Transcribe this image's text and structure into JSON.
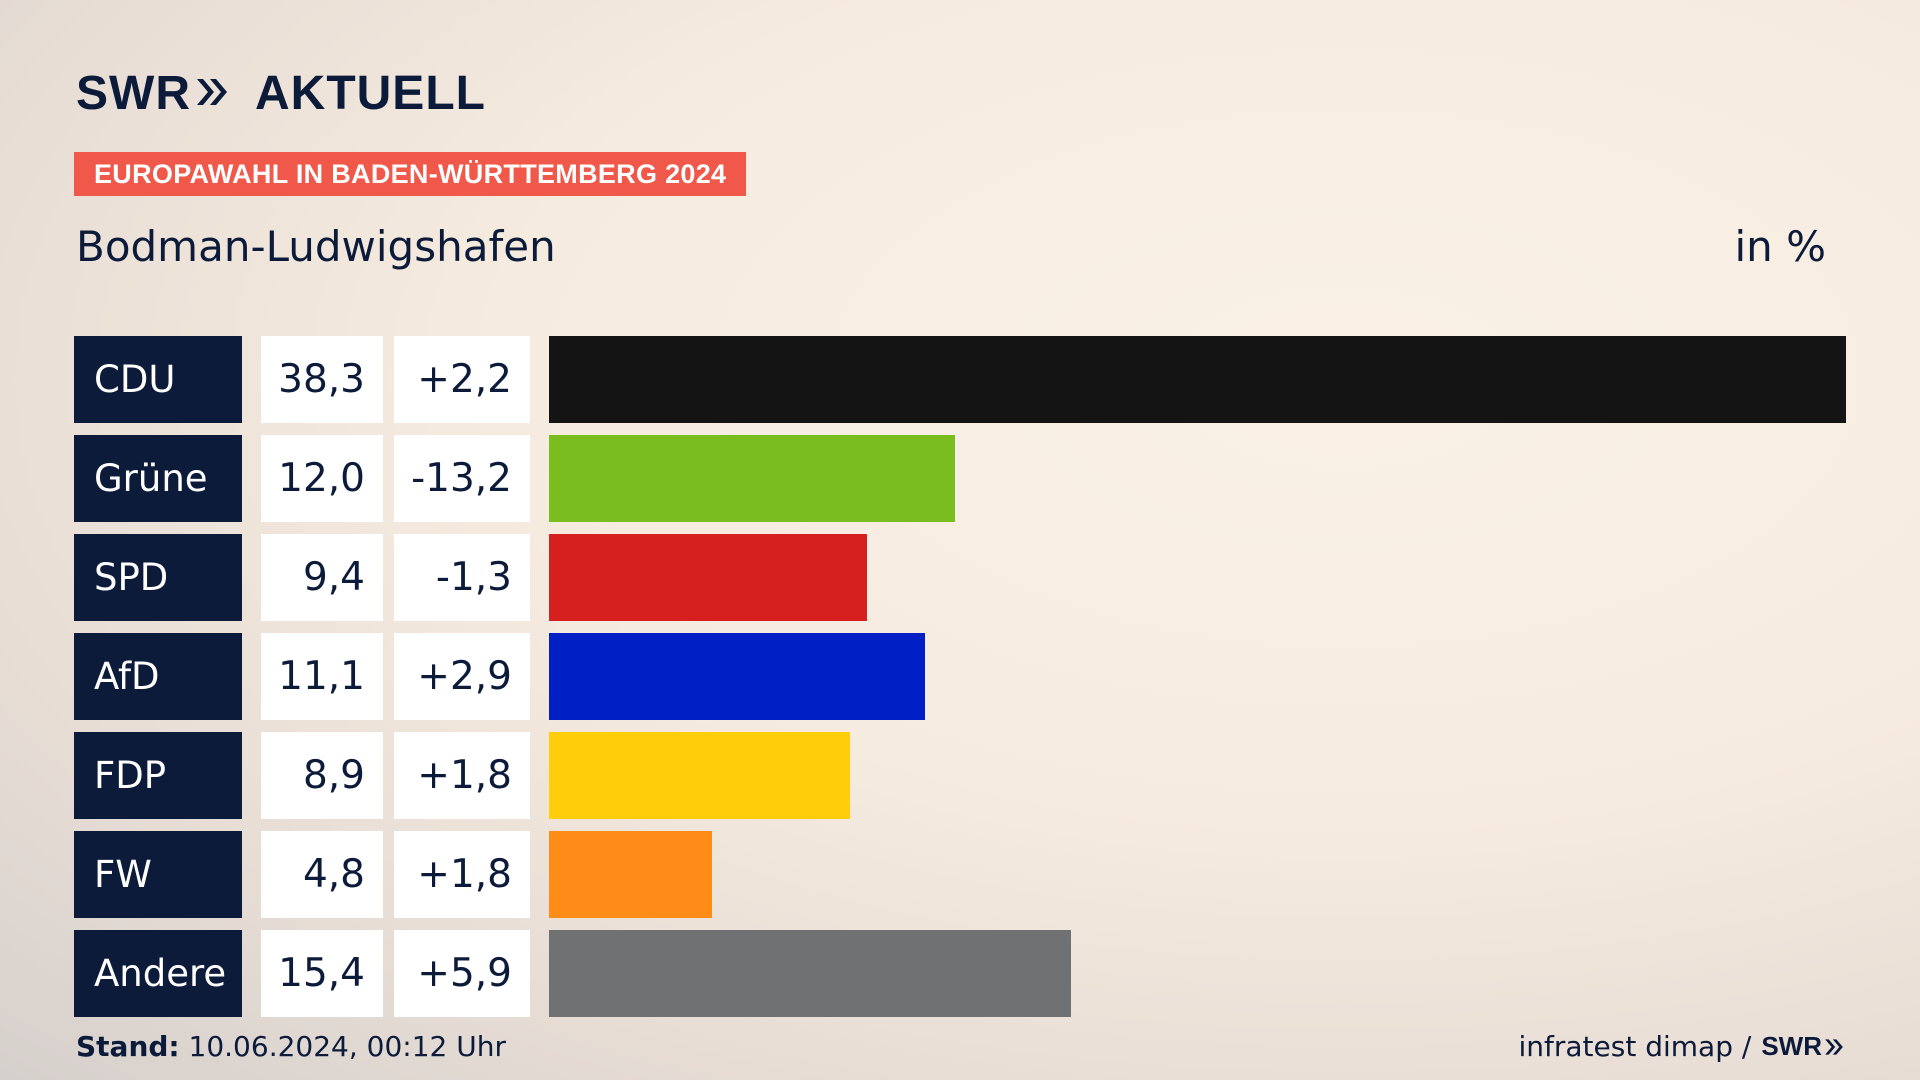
{
  "brand": {
    "swr": "SWR",
    "aktuell": "AKTUELL"
  },
  "banner": "EUROPAWAHL IN BADEN-WÜRTTEMBERG 2024",
  "place": "Bodman-Ludwigshafen",
  "unit": "in %",
  "footer": {
    "stand_label": "Stand:",
    "stand_value": "10.06.2024, 00:12 Uhr",
    "source": "infratest dimap /",
    "source_brand": "SWR"
  },
  "chart_data": {
    "type": "bar",
    "categories": [
      "CDU",
      "Grüne",
      "SPD",
      "AfD",
      "FDP",
      "FW",
      "Andere"
    ],
    "values": [
      38.3,
      12.0,
      9.4,
      11.1,
      8.9,
      4.8,
      15.4
    ],
    "value_labels": [
      "38,3",
      "12,0",
      "9,4",
      "11,1",
      "8,9",
      "4,8",
      "15,4"
    ],
    "diff_labels": [
      "+2,2",
      "-13,2",
      "-1,3",
      "+2,9",
      "+1,8",
      "+1,8",
      "+5,9"
    ],
    "colors": [
      "#141414",
      "#7abd1e",
      "#d61f1f",
      "#0020c6",
      "#ffcd0a",
      "#ff8c17",
      "#707173"
    ],
    "xlim": [
      0,
      38.3
    ]
  }
}
